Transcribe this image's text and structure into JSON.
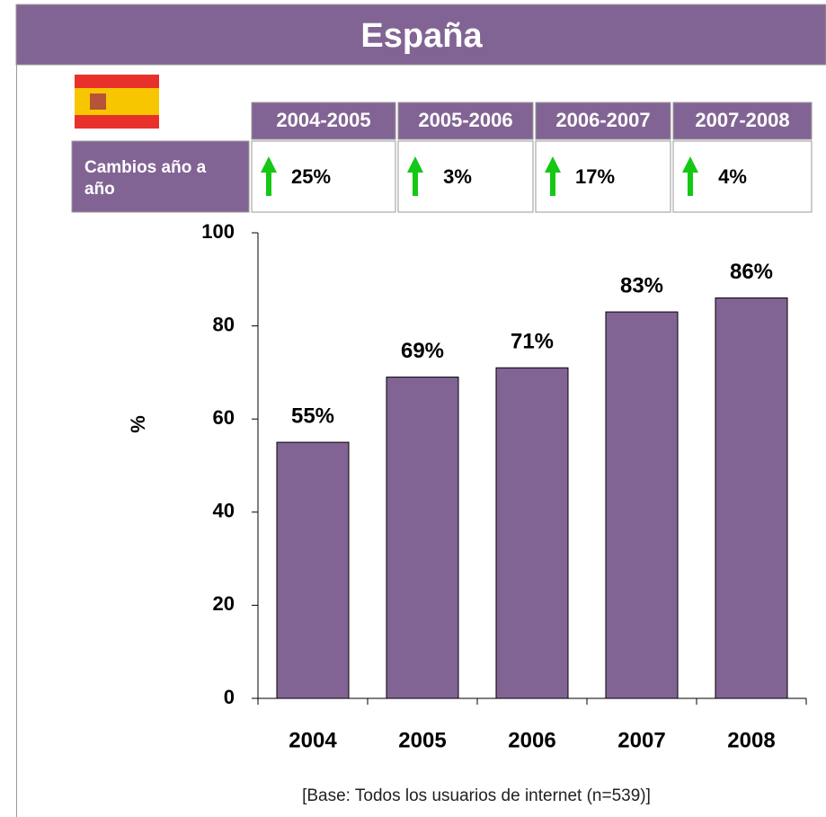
{
  "title": "España",
  "table": {
    "header": [
      "2004-2005",
      "2005-2006",
      "2006-2007",
      "2007-2008"
    ],
    "row_label": "Cambios año a año",
    "values": [
      25,
      3,
      17,
      4
    ],
    "value_labels": [
      "25%",
      "3%",
      "17%",
      "4%"
    ]
  },
  "chart_data": {
    "type": "bar",
    "ylabel": "%",
    "categories": [
      "2004",
      "2005",
      "2006",
      "2007",
      "2008"
    ],
    "values": [
      55,
      69,
      71,
      83,
      86
    ],
    "value_labels": [
      "55%",
      "69%",
      "71%",
      "83%",
      "86%"
    ],
    "color": "#826494",
    "ylim": [
      0,
      100
    ],
    "yticks": [
      0,
      20,
      40,
      60,
      80,
      100
    ],
    "footnote": "[Base: Todos los usuarios de internet (n=539)]"
  }
}
